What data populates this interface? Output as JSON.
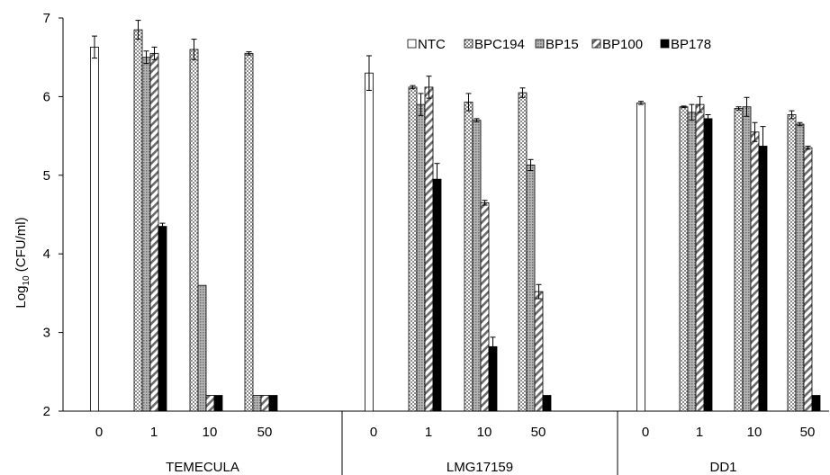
{
  "chart_data": {
    "type": "bar",
    "ylabel_main": "Log",
    "ylabel_sub": "10",
    "ylabel_tail": " (CFU/ml)",
    "ylim": [
      2,
      7
    ],
    "yticks": [
      "2",
      "3",
      "4",
      "5",
      "6",
      "7"
    ],
    "grid": false,
    "legend_position": "top-right",
    "groups": [
      {
        "name": "TEMECULA",
        "categories": [
          "0",
          "1",
          "10",
          "50"
        ],
        "series": [
          {
            "name": "NTC",
            "values": [
              6.63,
              null,
              null,
              null
            ],
            "errors": [
              0.14,
              null,
              null,
              null
            ]
          },
          {
            "name": "BPC194",
            "values": [
              null,
              6.85,
              6.6,
              6.55
            ],
            "errors": [
              null,
              0.12,
              0.13,
              0.02
            ]
          },
          {
            "name": "BP15",
            "values": [
              null,
              6.5,
              3.6,
              2.2
            ],
            "errors": [
              null,
              0.08,
              0,
              0
            ]
          },
          {
            "name": "BP100",
            "values": [
              null,
              6.55,
              2.2,
              2.2
            ],
            "errors": [
              null,
              0.08,
              0,
              0
            ]
          },
          {
            "name": "BP178",
            "values": [
              null,
              4.35,
              2.2,
              2.2
            ],
            "errors": [
              null,
              0.04,
              0,
              0
            ]
          }
        ]
      },
      {
        "name": "LMG17159",
        "categories": [
          "0",
          "1",
          "10",
          "50"
        ],
        "series": [
          {
            "name": "NTC",
            "values": [
              6.3,
              null,
              null,
              null
            ],
            "errors": [
              0.22,
              null,
              null,
              null
            ]
          },
          {
            "name": "BPC194",
            "values": [
              null,
              6.12,
              5.93,
              6.05
            ],
            "errors": [
              null,
              0.02,
              0.11,
              0.06
            ]
          },
          {
            "name": "BP15",
            "values": [
              null,
              5.9,
              5.7,
              5.13
            ],
            "errors": [
              null,
              0.14,
              0.02,
              0.07
            ]
          },
          {
            "name": "BP100",
            "values": [
              null,
              6.12,
              4.65,
              3.52
            ],
            "errors": [
              null,
              0.14,
              0.03,
              0.09
            ]
          },
          {
            "name": "BP178",
            "values": [
              null,
              4.95,
              2.82,
              2.2
            ],
            "errors": [
              null,
              0.2,
              0.12,
              0
            ]
          }
        ]
      },
      {
        "name": "DD1",
        "categories": [
          "0",
          "1",
          "10",
          "50"
        ],
        "series": [
          {
            "name": "NTC",
            "values": [
              5.92,
              null,
              null,
              null
            ],
            "errors": [
              0.02,
              null,
              null,
              null
            ]
          },
          {
            "name": "BPC194",
            "values": [
              null,
              5.87,
              5.85,
              5.77
            ],
            "errors": [
              null,
              0.01,
              0.02,
              0.05
            ]
          },
          {
            "name": "BP15",
            "values": [
              null,
              5.8,
              5.87,
              5.65
            ],
            "errors": [
              null,
              0.1,
              0.12,
              0.02
            ]
          },
          {
            "name": "BP100",
            "values": [
              null,
              5.9,
              5.55,
              5.35
            ],
            "errors": [
              null,
              0.1,
              0.12,
              0.02
            ]
          },
          {
            "name": "BP178",
            "values": [
              null,
              5.72,
              5.37,
              2.2
            ],
            "errors": [
              null,
              0.05,
              0.25,
              0
            ]
          }
        ]
      }
    ]
  }
}
